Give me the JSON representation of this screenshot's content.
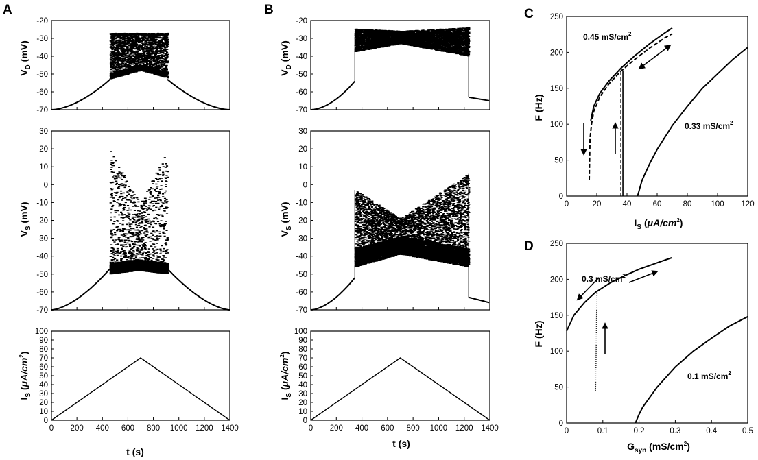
{
  "panel_labels": {
    "A": "A",
    "B": "B",
    "C": "C",
    "D": "D"
  },
  "common": {
    "x_ticks": [
      0,
      200,
      400,
      600,
      800,
      1000,
      1200,
      1400
    ],
    "xlabel": "t (s)"
  },
  "chart_data": [
    {
      "id": "A_VD",
      "type": "scatter",
      "panel": "A",
      "ylabel": {
        "main": "V",
        "sub": "D",
        "unit": " (mV)"
      },
      "xlim": [
        0,
        1400
      ],
      "ylim": [
        -70,
        -20
      ],
      "yticks": [
        -70,
        -60,
        -50,
        -40,
        -30,
        -20
      ],
      "description_values": {
        "ramp_start": -70,
        "burst_onset_t": 460,
        "burst_offset_t": 910,
        "spike_peak": -28,
        "envelope_min": [
          -52,
          -47
        ]
      }
    },
    {
      "id": "A_VS",
      "type": "scatter",
      "panel": "A",
      "ylabel": {
        "main": "V",
        "sub": "S",
        "unit": " (mV)"
      },
      "xlim": [
        0,
        1400
      ],
      "ylim": [
        -70,
        30
      ],
      "yticks": [
        -70,
        -60,
        -50,
        -40,
        -30,
        -20,
        -10,
        0,
        10,
        20,
        30
      ],
      "description_values": {
        "ramp_start": -70,
        "burst_onset_t": 460,
        "burst_offset_t": 910,
        "band": [
          -50,
          -43
        ],
        "max_spike": 20
      }
    },
    {
      "id": "A_IS",
      "type": "line",
      "panel": "A",
      "ylabel": {
        "main": "I",
        "sub": "S",
        "unit_open": " (",
        "unit_mu": "μA/cm",
        "unit_sup": "2",
        "unit_close": ")"
      },
      "xlabel": "t (s)",
      "xlim": [
        0,
        1400
      ],
      "ylim": [
        0,
        100
      ],
      "yticks": [
        0,
        10,
        20,
        30,
        40,
        50,
        60,
        70,
        80,
        90,
        100
      ],
      "x": [
        0,
        700,
        1400
      ],
      "y": [
        0,
        70,
        0
      ]
    },
    {
      "id": "B_VD",
      "type": "scatter",
      "panel": "B",
      "ylabel": {
        "main": "V",
        "sub": "D",
        "unit": " (mV)"
      },
      "xlim": [
        0,
        1400
      ],
      "ylim": [
        -70,
        -20
      ],
      "yticks": [
        -70,
        -60,
        -50,
        -40,
        -30,
        -20
      ],
      "description_values": {
        "burst_onset_t": 345,
        "burst_offset_t": 1235,
        "band_top": [
          -24,
          -26
        ],
        "band_bottom": [
          -40,
          -33
        ]
      }
    },
    {
      "id": "B_VS",
      "type": "scatter",
      "panel": "B",
      "ylabel": {
        "main": "V",
        "sub": "S",
        "unit": " (mV)"
      },
      "xlim": [
        0,
        1400
      ],
      "ylim": [
        -70,
        30
      ],
      "yticks": [
        -70,
        -60,
        -50,
        -40,
        -30,
        -20,
        -10,
        0,
        10,
        20,
        30
      ],
      "description_values": {
        "burst_onset_t": 345,
        "burst_offset_t": 1235,
        "band_top": [
          -3,
          -19,
          6
        ],
        "band_bottom": [
          -46,
          -39,
          -46
        ]
      }
    },
    {
      "id": "B_IS",
      "type": "line",
      "panel": "B",
      "ylabel": {
        "main": "I",
        "sub": "S",
        "unit_open": " (",
        "unit_mu": "μA/cm",
        "unit_sup": "2",
        "unit_close": ")"
      },
      "xlabel": "t (s)",
      "xlim": [
        0,
        1400
      ],
      "ylim": [
        0,
        100
      ],
      "yticks": [
        0,
        10,
        20,
        30,
        40,
        50,
        60,
        70,
        80,
        90,
        100
      ],
      "x": [
        0,
        700,
        1400
      ],
      "y": [
        0,
        70,
        0
      ]
    },
    {
      "id": "C",
      "type": "line",
      "panel": "C",
      "ylabel": "F (Hz)",
      "xlabel": {
        "main": "I",
        "sub": "S",
        "unit_open": " (",
        "unit_mu": "μA/cm",
        "unit_sup": "2",
        "unit_close": ")"
      },
      "xlim": [
        0,
        120
      ],
      "ylim": [
        0,
        250
      ],
      "xticks": [
        0,
        20,
        40,
        60,
        80,
        100,
        120
      ],
      "yticks": [
        0,
        50,
        100,
        150,
        200,
        250
      ],
      "annotations": [
        {
          "text": "0.45 mS/cm",
          "sup": "2"
        },
        {
          "text": "0.33 mS/cm",
          "sup": "2"
        }
      ],
      "series": [
        {
          "name": "0.45 mS/cm2 up",
          "style": "solid",
          "x": [
            16,
            18,
            22,
            28,
            36,
            45,
            55,
            65,
            70
          ],
          "y": [
            105,
            125,
            143,
            160,
            178,
            195,
            212,
            227,
            234
          ]
        },
        {
          "name": "0.45 mS/cm2 down",
          "style": "dashed",
          "x": [
            15,
            15.5,
            16.5,
            18,
            22,
            28,
            36,
            45,
            55,
            65,
            70
          ],
          "y": [
            22,
            80,
            100,
            118,
            138,
            156,
            174,
            190,
            206,
            220,
            226
          ]
        },
        {
          "name": "0.33 mS/cm2",
          "style": "solid",
          "x": [
            47,
            50,
            55,
            60,
            70,
            80,
            90,
            100,
            110,
            120
          ],
          "y": [
            0,
            22,
            45,
            65,
            98,
            125,
            150,
            170,
            190,
            207
          ]
        }
      ]
    },
    {
      "id": "D",
      "type": "line",
      "panel": "D",
      "ylabel": "F (Hz)",
      "xlabel": {
        "main": "G",
        "sub": "syn",
        "unit": " (mS/cm",
        "unit_sup": "2",
        "unit_close": ")"
      },
      "xlim": [
        0,
        0.5
      ],
      "ylim": [
        0,
        250
      ],
      "xticks": [
        0,
        0.1,
        0.2,
        0.3,
        0.4,
        0.5
      ],
      "yticks": [
        0,
        50,
        100,
        150,
        200,
        250
      ],
      "annotations": [
        {
          "text": "0.3 mS/cm",
          "sup": "2"
        },
        {
          "text": "0.1 mS/cm",
          "sup": "2"
        }
      ],
      "series": [
        {
          "name": "0.3 mS/cm2",
          "style": "solid",
          "x": [
            0,
            0.02,
            0.05,
            0.08,
            0.12,
            0.16,
            0.2,
            0.25,
            0.29
          ],
          "y": [
            128,
            150,
            168,
            182,
            195,
            205,
            214,
            223,
            230
          ]
        },
        {
          "name": "0.3 mS/cm2 jump",
          "style": "dotted",
          "x": [
            0.08,
            0.081,
            0.082,
            0.083,
            0.084
          ],
          "y": [
            45,
            80,
            120,
            160,
            182
          ]
        },
        {
          "name": "0.1 mS/cm2",
          "style": "solid",
          "x": [
            0.19,
            0.2,
            0.21,
            0.25,
            0.3,
            0.35,
            0.4,
            0.45,
            0.5
          ],
          "y": [
            0,
            12,
            22,
            50,
            78,
            100,
            118,
            135,
            148
          ]
        }
      ]
    }
  ]
}
